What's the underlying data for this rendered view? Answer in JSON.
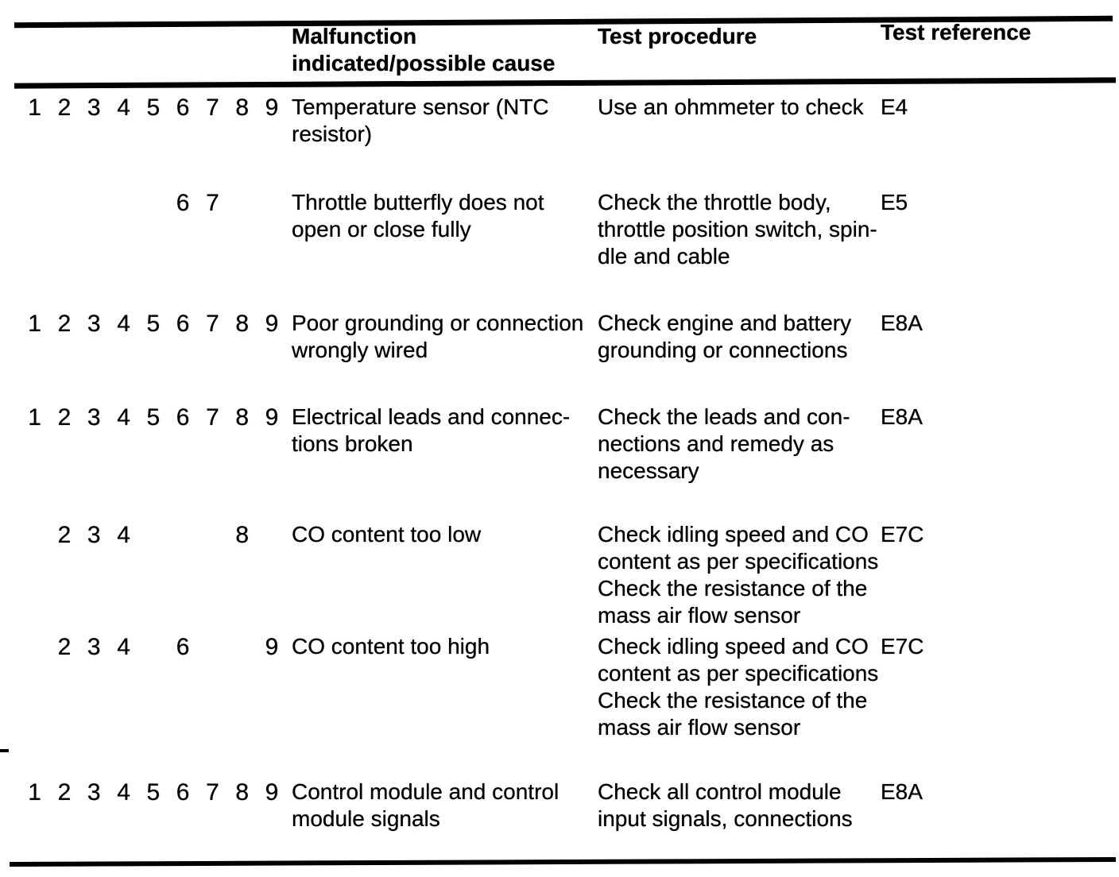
{
  "table": {
    "header": {
      "malfunction": "Malfunction\nindicated/possible cause",
      "procedure": "Test procedure",
      "reference": "Test reference"
    },
    "rows": [
      {
        "codes": [
          "1",
          "2",
          "3",
          "4",
          "5",
          "6",
          "7",
          "8",
          "9"
        ],
        "malfunction": "Temperature sensor (NTC\nresistor)",
        "procedure": "Use an ohmmeter to check",
        "reference": "E4"
      },
      {
        "codes": [
          "",
          "",
          "",
          "",
          "",
          "6",
          "7",
          "",
          ""
        ],
        "malfunction": "Throttle butterfly does not\nopen or close fully",
        "procedure": "Check the throttle body,\nthrottle position switch, spin-\ndle and cable",
        "reference": "E5"
      },
      {
        "codes": [
          "1",
          "2",
          "3",
          "4",
          "5",
          "6",
          "7",
          "8",
          "9"
        ],
        "malfunction": "Poor grounding or connection\nwrongly wired",
        "procedure": "Check engine and battery\ngrounding or connections",
        "reference": "E8A"
      },
      {
        "codes": [
          "1",
          "2",
          "3",
          "4",
          "5",
          "6",
          "7",
          "8",
          "9"
        ],
        "malfunction": "Electrical leads and connec-\ntions broken",
        "procedure": "Check the leads and con-\nnections and remedy as\nnecessary",
        "reference": "E8A"
      },
      {
        "codes": [
          "",
          "2",
          "3",
          "4",
          "",
          "",
          "",
          "8",
          ""
        ],
        "malfunction": "CO content too low",
        "procedure": "Check idling speed and CO\ncontent as per specifications\nCheck the resistance of the\nmass air flow sensor",
        "reference": "E7C"
      },
      {
        "codes": [
          "",
          "2",
          "3",
          "4",
          "",
          "6",
          "",
          "",
          "9"
        ],
        "malfunction": "CO content too high",
        "procedure": "Check idling speed and CO\ncontent as per specifications\nCheck the resistance of the\nmass air flow sensor",
        "reference": "E7C"
      },
      {
        "codes": [
          "1",
          "2",
          "3",
          "4",
          "5",
          "6",
          "7",
          "8",
          "9"
        ],
        "malfunction": "Control module and control\nmodule signals",
        "procedure": "Check all control module\ninput signals, connections",
        "reference": "E8A"
      }
    ]
  }
}
